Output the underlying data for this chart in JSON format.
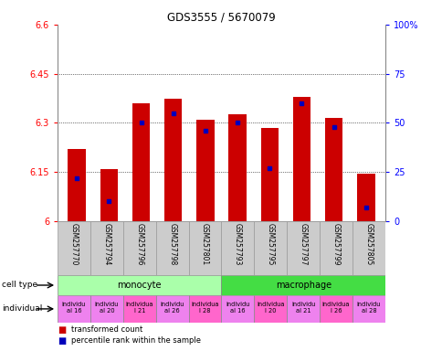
{
  "title": "GDS3555 / 5670079",
  "samples": [
    "GSM257770",
    "GSM257794",
    "GSM257796",
    "GSM257798",
    "GSM257801",
    "GSM257793",
    "GSM257795",
    "GSM257797",
    "GSM257799",
    "GSM257805"
  ],
  "transformed_count": [
    6.22,
    6.16,
    6.36,
    6.375,
    6.31,
    6.325,
    6.285,
    6.38,
    6.315,
    6.145
  ],
  "percentile_rank": [
    22,
    10,
    50,
    55,
    46,
    50,
    27,
    60,
    48,
    7
  ],
  "ylim_left": [
    6.0,
    6.6
  ],
  "ylim_right": [
    0,
    100
  ],
  "yticks_left": [
    6.0,
    6.15,
    6.3,
    6.45,
    6.6
  ],
  "yticks_right": [
    0,
    25,
    50,
    75,
    100
  ],
  "ytick_labels_left": [
    "6",
    "6.15",
    "6.3",
    "6.45",
    "6.6"
  ],
  "ytick_labels_right": [
    "0",
    "25",
    "50",
    "75",
    "100%"
  ],
  "cell_type_blocks": [
    {
      "label": "monocyte",
      "start": 0,
      "end": 4,
      "color": "#aaffaa"
    },
    {
      "label": "macrophage",
      "start": 5,
      "end": 9,
      "color": "#44dd44"
    }
  ],
  "individual_labels": [
    {
      "label": "individu\nal 16",
      "idx": 0,
      "color": "#ee82ee"
    },
    {
      "label": "individu\nal 20",
      "idx": 1,
      "color": "#ee82ee"
    },
    {
      "label": "individua\nl 21",
      "idx": 2,
      "color": "#ff66cc"
    },
    {
      "label": "individu\nal 26",
      "idx": 3,
      "color": "#ee82ee"
    },
    {
      "label": "individua\nl 28",
      "idx": 4,
      "color": "#ff66cc"
    },
    {
      "label": "individu\nal 16",
      "idx": 5,
      "color": "#ee82ee"
    },
    {
      "label": "individua\nl 20",
      "idx": 6,
      "color": "#ff66cc"
    },
    {
      "label": "individu\nal 21",
      "idx": 7,
      "color": "#ee82ee"
    },
    {
      "label": "individua\nl 26",
      "idx": 8,
      "color": "#ff66cc"
    },
    {
      "label": "individu\nal 28",
      "idx": 9,
      "color": "#ee82ee"
    }
  ],
  "bar_color": "#cc0000",
  "dot_color": "#0000bb",
  "bar_width": 0.55,
  "ybase": 6.0,
  "sample_bg": "#cccccc",
  "sample_border": "#999999"
}
